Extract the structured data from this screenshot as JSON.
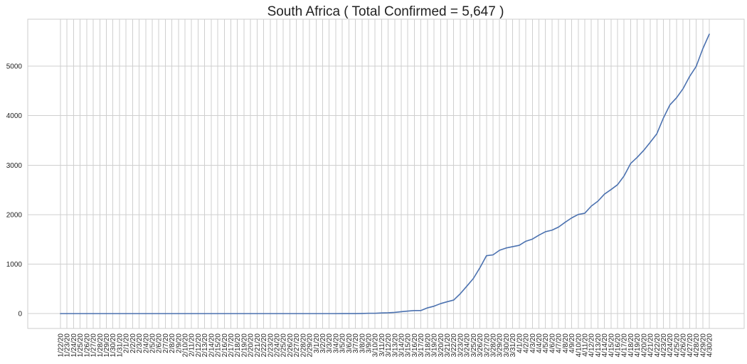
{
  "chart_data": {
    "type": "line",
    "title": "South Africa ( Total Confirmed = 5,647 )",
    "xlabel": "",
    "ylabel": "",
    "grid": true,
    "ylim": [
      -300,
      5950
    ],
    "y_ticks": [
      0,
      1000,
      2000,
      3000,
      4000,
      5000
    ],
    "x": [
      "1/22/20",
      "1/23/20",
      "1/24/20",
      "1/25/20",
      "1/26/20",
      "1/27/20",
      "1/28/20",
      "1/29/20",
      "1/30/20",
      "1/31/20",
      "2/1/20",
      "2/2/20",
      "2/3/20",
      "2/4/20",
      "2/5/20",
      "2/6/20",
      "2/7/20",
      "2/8/20",
      "2/9/20",
      "2/10/20",
      "2/11/20",
      "2/12/20",
      "2/13/20",
      "2/14/20",
      "2/15/20",
      "2/16/20",
      "2/17/20",
      "2/18/20",
      "2/19/20",
      "2/20/20",
      "2/21/20",
      "2/22/20",
      "2/23/20",
      "2/24/20",
      "2/25/20",
      "2/26/20",
      "2/27/20",
      "2/28/20",
      "2/29/20",
      "3/1/20",
      "3/2/20",
      "3/3/20",
      "3/4/20",
      "3/5/20",
      "3/6/20",
      "3/7/20",
      "3/8/20",
      "3/9/20",
      "3/10/20",
      "3/11/20",
      "3/12/20",
      "3/13/20",
      "3/14/20",
      "3/15/20",
      "3/16/20",
      "3/17/20",
      "3/18/20",
      "3/19/20",
      "3/20/20",
      "3/21/20",
      "3/22/20",
      "3/23/20",
      "3/24/20",
      "3/25/20",
      "3/26/20",
      "3/27/20",
      "3/28/20",
      "3/29/20",
      "3/30/20",
      "3/31/20",
      "4/1/20",
      "4/2/20",
      "4/3/20",
      "4/4/20",
      "4/5/20",
      "4/6/20",
      "4/7/20",
      "4/8/20",
      "4/9/20",
      "4/10/20",
      "4/11/20",
      "4/12/20",
      "4/13/20",
      "4/14/20",
      "4/15/20",
      "4/16/20",
      "4/17/20",
      "4/18/20",
      "4/19/20",
      "4/20/20",
      "4/21/20",
      "4/22/20",
      "4/23/20",
      "4/24/20",
      "4/25/20",
      "4/26/20",
      "4/27/20",
      "4/28/20",
      "4/29/20",
      "4/30/20"
    ],
    "series": [
      {
        "color": "#4c72b0",
        "values": [
          0,
          0,
          0,
          0,
          0,
          0,
          0,
          0,
          0,
          0,
          0,
          0,
          0,
          0,
          0,
          0,
          0,
          0,
          0,
          0,
          0,
          0,
          0,
          0,
          0,
          0,
          0,
          0,
          0,
          0,
          0,
          0,
          0,
          0,
          0,
          0,
          0,
          0,
          0,
          0,
          0,
          0,
          0,
          1,
          1,
          1,
          3,
          7,
          7,
          13,
          17,
          24,
          38,
          51,
          62,
          62,
          116,
          150,
          202,
          240,
          274,
          402,
          554,
          709,
          927,
          1170,
          1187,
          1280,
          1326,
          1353,
          1380,
          1462,
          1505,
          1585,
          1655,
          1686,
          1749,
          1845,
          1934,
          2003,
          2028,
          2173,
          2272,
          2415,
          2506,
          2605,
          2783,
          3034,
          3158,
          3300,
          3465,
          3635,
          3953,
          4220,
          4361,
          4546,
          4793,
          4996,
          5350,
          5647
        ]
      }
    ]
  }
}
